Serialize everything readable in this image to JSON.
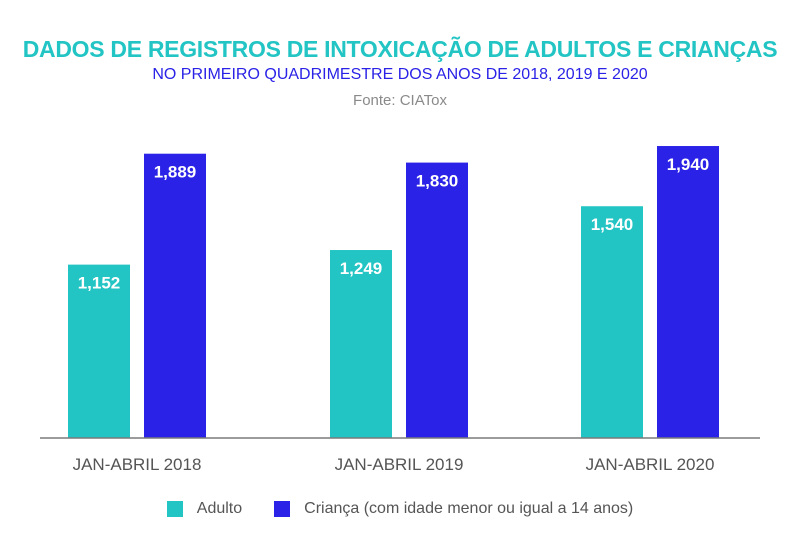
{
  "header": {
    "title": "DADOS DE REGISTROS DE INTOXICAÇÃO DE ADULTOS E CRIANÇAS",
    "subtitle": "NO PRIMEIRO QUADRIMESTRE DOS ANOS DE 2018, 2019 E 2020",
    "source": "Fonte: CIATox"
  },
  "colors": {
    "adulto": "#22c4c4",
    "crianca": "#2a22e6",
    "axis": "#7a7a7a",
    "tick_text": "#555555"
  },
  "legend": {
    "items": [
      {
        "label": "Adulto",
        "color": "#22c4c4"
      },
      {
        "label": "Criança (com idade menor ou igual a 14 anos)",
        "color": "#2a22e6"
      }
    ],
    "position": "bottom"
  },
  "chart_data": {
    "type": "bar",
    "title": "DADOS DE REGISTROS DE INTOXICAÇÃO DE ADULTOS E CRIANÇAS",
    "subtitle": "NO PRIMEIRO QUADRIMESTRE DOS ANOS DE 2018, 2019 E 2020",
    "categories": [
      "JAN-ABRIL 2018",
      "JAN-ABRIL 2019",
      "JAN-ABRIL 2020"
    ],
    "series": [
      {
        "name": "Adulto",
        "values": [
          1152,
          1249,
          1540
        ],
        "labels": [
          "1,152",
          "1,249",
          "1,540"
        ]
      },
      {
        "name": "Criança (com idade menor ou igual a 14 anos)",
        "values": [
          1889,
          1830,
          1940
        ],
        "labels": [
          "1,889",
          "1,830",
          "1,940"
        ]
      }
    ],
    "xlabel": "",
    "ylabel": "",
    "grid": false,
    "legend_position": "bottom"
  }
}
